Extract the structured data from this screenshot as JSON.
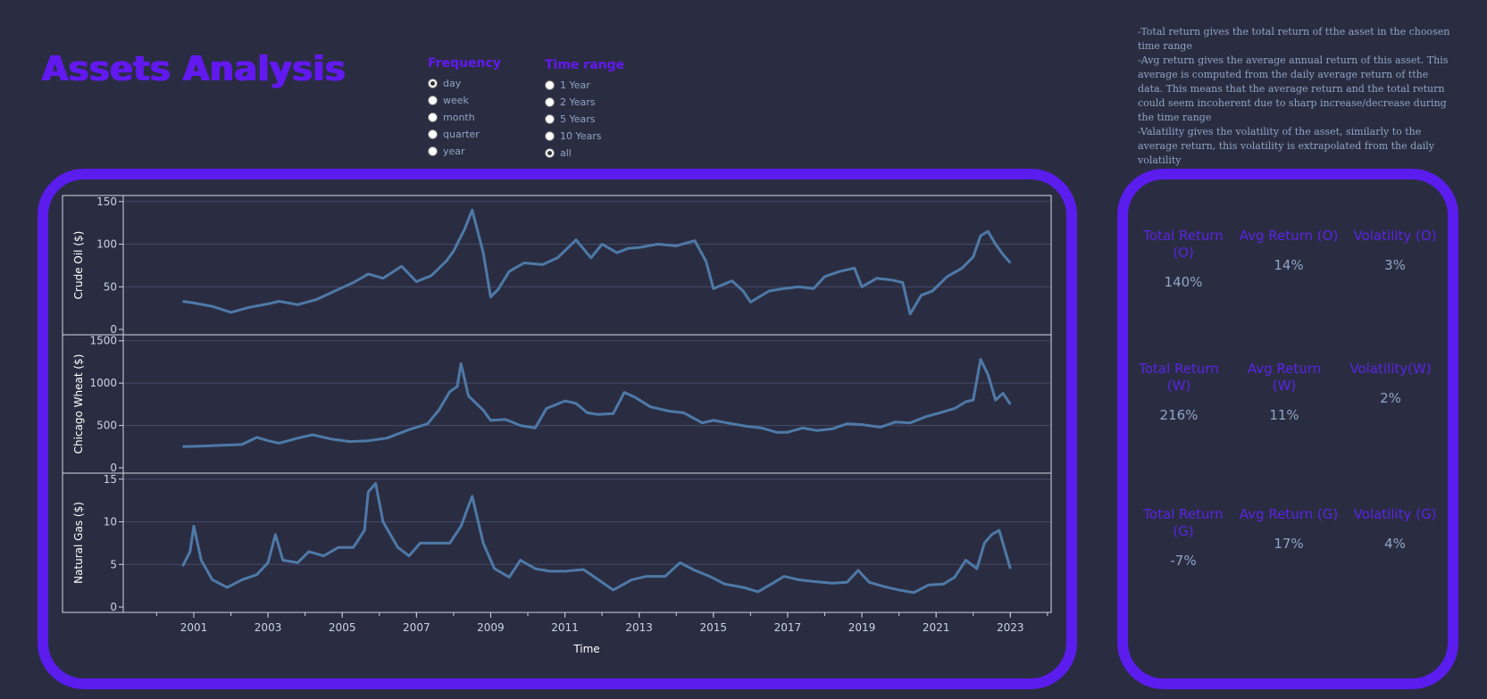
{
  "app": {
    "title": "Assets Analysis"
  },
  "frequency": {
    "title": "Frequency",
    "options": [
      "day",
      "week",
      "month",
      "quarter",
      "year"
    ],
    "selected": "day"
  },
  "time_range": {
    "title": "Time range",
    "options": [
      "1 Year",
      "2 Years",
      "5 Years",
      "10 Years",
      "all"
    ],
    "selected": "all"
  },
  "help": [
    "-Total return gives the total return of tthe asset in the choosen time range",
    "-Avg return gives the average annual return of this asset. This average is computed from the daily average return of tthe data. This means that the average return and the total return could seem incoherent due to sharp increase/decrease during the time range",
    "-Valatility gives the volatility of the asset, similarly to the average return, this volatility is extrapolated from the daily volatility"
  ],
  "stats": [
    {
      "label": "Total Return (O)",
      "value": "140%"
    },
    {
      "label": "Avg Return (O)",
      "value": "14%"
    },
    {
      "label": "Volatility (O)",
      "value": "3%"
    },
    {
      "label": "Total Return (W)",
      "value": "216%"
    },
    {
      "label": "Avg Return (W)",
      "value": "11%"
    },
    {
      "label": "Volatility(W)",
      "value": "2%"
    },
    {
      "label": "Total Return (G)",
      "value": "-7%"
    },
    {
      "label": "Avg Return (G)",
      "value": "17%"
    },
    {
      "label": "Volatility (G)",
      "value": "4%"
    }
  ],
  "colors": {
    "accent": "#5b1cee",
    "line": "#4e79a7",
    "background": "#2a2d42"
  },
  "chart_data": {
    "type": "line",
    "xlabel": "Time",
    "x_ticks": [
      "2001",
      "2003",
      "2005",
      "2007",
      "2009",
      "2011",
      "2013",
      "2015",
      "2017",
      "2019",
      "2021",
      "2023"
    ],
    "x_range": [
      1999.1,
      2024.1
    ],
    "panels": [
      {
        "ylabel": "Crude Oil ($)",
        "ylim": [
          0,
          155
        ],
        "yticks": [
          0,
          50,
          100,
          150
        ],
        "points": [
          [
            2000.7,
            33
          ],
          [
            2001.0,
            31
          ],
          [
            2001.5,
            27
          ],
          [
            2002.0,
            20
          ],
          [
            2002.5,
            26
          ],
          [
            2003.0,
            30
          ],
          [
            2003.3,
            33
          ],
          [
            2003.8,
            29
          ],
          [
            2004.3,
            35
          ],
          [
            2004.8,
            45
          ],
          [
            2005.3,
            55
          ],
          [
            2005.7,
            65
          ],
          [
            2006.1,
            60
          ],
          [
            2006.6,
            74
          ],
          [
            2007.0,
            56
          ],
          [
            2007.4,
            63
          ],
          [
            2007.8,
            80
          ],
          [
            2008.0,
            92
          ],
          [
            2008.3,
            118
          ],
          [
            2008.5,
            140
          ],
          [
            2008.8,
            90
          ],
          [
            2009.0,
            38
          ],
          [
            2009.2,
            47
          ],
          [
            2009.5,
            68
          ],
          [
            2009.9,
            78
          ],
          [
            2010.4,
            76
          ],
          [
            2010.8,
            84
          ],
          [
            2011.3,
            105
          ],
          [
            2011.7,
            84
          ],
          [
            2012.0,
            100
          ],
          [
            2012.4,
            90
          ],
          [
            2012.7,
            95
          ],
          [
            2013.0,
            96
          ],
          [
            2013.5,
            100
          ],
          [
            2014.0,
            98
          ],
          [
            2014.5,
            104
          ],
          [
            2014.8,
            80
          ],
          [
            2015.0,
            48
          ],
          [
            2015.5,
            57
          ],
          [
            2015.8,
            45
          ],
          [
            2016.0,
            32
          ],
          [
            2016.5,
            45
          ],
          [
            2016.9,
            48
          ],
          [
            2017.3,
            50
          ],
          [
            2017.7,
            48
          ],
          [
            2018.0,
            62
          ],
          [
            2018.4,
            68
          ],
          [
            2018.8,
            72
          ],
          [
            2019.0,
            50
          ],
          [
            2019.4,
            60
          ],
          [
            2019.8,
            58
          ],
          [
            2020.1,
            55
          ],
          [
            2020.3,
            18
          ],
          [
            2020.6,
            40
          ],
          [
            2020.9,
            45
          ],
          [
            2021.3,
            62
          ],
          [
            2021.7,
            72
          ],
          [
            2022.0,
            85
          ],
          [
            2022.2,
            110
          ],
          [
            2022.4,
            115
          ],
          [
            2022.6,
            100
          ],
          [
            2022.8,
            88
          ],
          [
            2023.0,
            78
          ]
        ]
      },
      {
        "ylabel": "Chicago Wheat ($)",
        "ylim": [
          0,
          1550
        ],
        "yticks": [
          0,
          500,
          1000,
          1500
        ],
        "points": [
          [
            2000.7,
            250
          ],
          [
            2001.2,
            255
          ],
          [
            2001.7,
            265
          ],
          [
            2002.3,
            275
          ],
          [
            2002.7,
            360
          ],
          [
            2003.0,
            320
          ],
          [
            2003.3,
            290
          ],
          [
            2003.8,
            350
          ],
          [
            2004.2,
            390
          ],
          [
            2004.7,
            340
          ],
          [
            2005.2,
            310
          ],
          [
            2005.7,
            320
          ],
          [
            2006.2,
            350
          ],
          [
            2006.8,
            450
          ],
          [
            2007.3,
            520
          ],
          [
            2007.6,
            680
          ],
          [
            2007.9,
            900
          ],
          [
            2008.1,
            960
          ],
          [
            2008.2,
            1230
          ],
          [
            2008.4,
            850
          ],
          [
            2008.8,
            680
          ],
          [
            2009.0,
            560
          ],
          [
            2009.4,
            570
          ],
          [
            2009.8,
            500
          ],
          [
            2010.2,
            470
          ],
          [
            2010.5,
            700
          ],
          [
            2011.0,
            790
          ],
          [
            2011.3,
            760
          ],
          [
            2011.6,
            650
          ],
          [
            2011.9,
            630
          ],
          [
            2012.3,
            640
          ],
          [
            2012.6,
            890
          ],
          [
            2012.9,
            830
          ],
          [
            2013.3,
            720
          ],
          [
            2013.8,
            670
          ],
          [
            2014.2,
            650
          ],
          [
            2014.7,
            530
          ],
          [
            2015.0,
            560
          ],
          [
            2015.5,
            520
          ],
          [
            2015.9,
            490
          ],
          [
            2016.3,
            470
          ],
          [
            2016.7,
            420
          ],
          [
            2017.0,
            420
          ],
          [
            2017.4,
            470
          ],
          [
            2017.8,
            440
          ],
          [
            2018.2,
            460
          ],
          [
            2018.6,
            520
          ],
          [
            2019.0,
            510
          ],
          [
            2019.5,
            480
          ],
          [
            2019.9,
            540
          ],
          [
            2020.3,
            530
          ],
          [
            2020.7,
            600
          ],
          [
            2021.1,
            650
          ],
          [
            2021.5,
            700
          ],
          [
            2021.8,
            780
          ],
          [
            2022.0,
            800
          ],
          [
            2022.2,
            1280
          ],
          [
            2022.4,
            1100
          ],
          [
            2022.6,
            800
          ],
          [
            2022.8,
            880
          ],
          [
            2023.0,
            750
          ]
        ]
      },
      {
        "ylabel": "Natural Gas ($)",
        "ylim": [
          0,
          15.5
        ],
        "yticks": [
          0,
          5,
          10,
          15
        ],
        "points": [
          [
            2000.7,
            4.8
          ],
          [
            2000.9,
            6.5
          ],
          [
            2001.0,
            9.5
          ],
          [
            2001.2,
            5.5
          ],
          [
            2001.5,
            3.2
          ],
          [
            2001.9,
            2.3
          ],
          [
            2002.3,
            3.2
          ],
          [
            2002.7,
            3.8
          ],
          [
            2003.0,
            5.2
          ],
          [
            2003.2,
            8.5
          ],
          [
            2003.4,
            5.5
          ],
          [
            2003.8,
            5.2
          ],
          [
            2004.1,
            6.5
          ],
          [
            2004.5,
            6.0
          ],
          [
            2004.9,
            7.0
          ],
          [
            2005.3,
            7.0
          ],
          [
            2005.6,
            9.0
          ],
          [
            2005.7,
            13.5
          ],
          [
            2005.9,
            14.5
          ],
          [
            2006.1,
            10.0
          ],
          [
            2006.5,
            7.0
          ],
          [
            2006.8,
            6.0
          ],
          [
            2007.1,
            7.5
          ],
          [
            2007.5,
            7.5
          ],
          [
            2007.9,
            7.5
          ],
          [
            2008.2,
            9.5
          ],
          [
            2008.5,
            13.0
          ],
          [
            2008.8,
            7.5
          ],
          [
            2009.1,
            4.5
          ],
          [
            2009.5,
            3.5
          ],
          [
            2009.8,
            5.5
          ],
          [
            2010.2,
            4.5
          ],
          [
            2010.6,
            4.2
          ],
          [
            2011.0,
            4.2
          ],
          [
            2011.5,
            4.4
          ],
          [
            2011.9,
            3.2
          ],
          [
            2012.3,
            2.0
          ],
          [
            2012.8,
            3.2
          ],
          [
            2013.2,
            3.6
          ],
          [
            2013.7,
            3.6
          ],
          [
            2014.1,
            5.2
          ],
          [
            2014.5,
            4.3
          ],
          [
            2014.9,
            3.6
          ],
          [
            2015.3,
            2.7
          ],
          [
            2015.8,
            2.3
          ],
          [
            2016.2,
            1.8
          ],
          [
            2016.6,
            2.8
          ],
          [
            2016.9,
            3.6
          ],
          [
            2017.3,
            3.2
          ],
          [
            2017.7,
            3.0
          ],
          [
            2018.2,
            2.8
          ],
          [
            2018.6,
            2.9
          ],
          [
            2018.9,
            4.3
          ],
          [
            2019.2,
            2.9
          ],
          [
            2019.6,
            2.4
          ],
          [
            2020.0,
            2.0
          ],
          [
            2020.4,
            1.7
          ],
          [
            2020.8,
            2.6
          ],
          [
            2021.2,
            2.7
          ],
          [
            2021.5,
            3.5
          ],
          [
            2021.8,
            5.5
          ],
          [
            2022.1,
            4.5
          ],
          [
            2022.3,
            7.5
          ],
          [
            2022.5,
            8.5
          ],
          [
            2022.7,
            9.0
          ],
          [
            2022.9,
            6.0
          ],
          [
            2023.0,
            4.5
          ]
        ]
      }
    ]
  }
}
